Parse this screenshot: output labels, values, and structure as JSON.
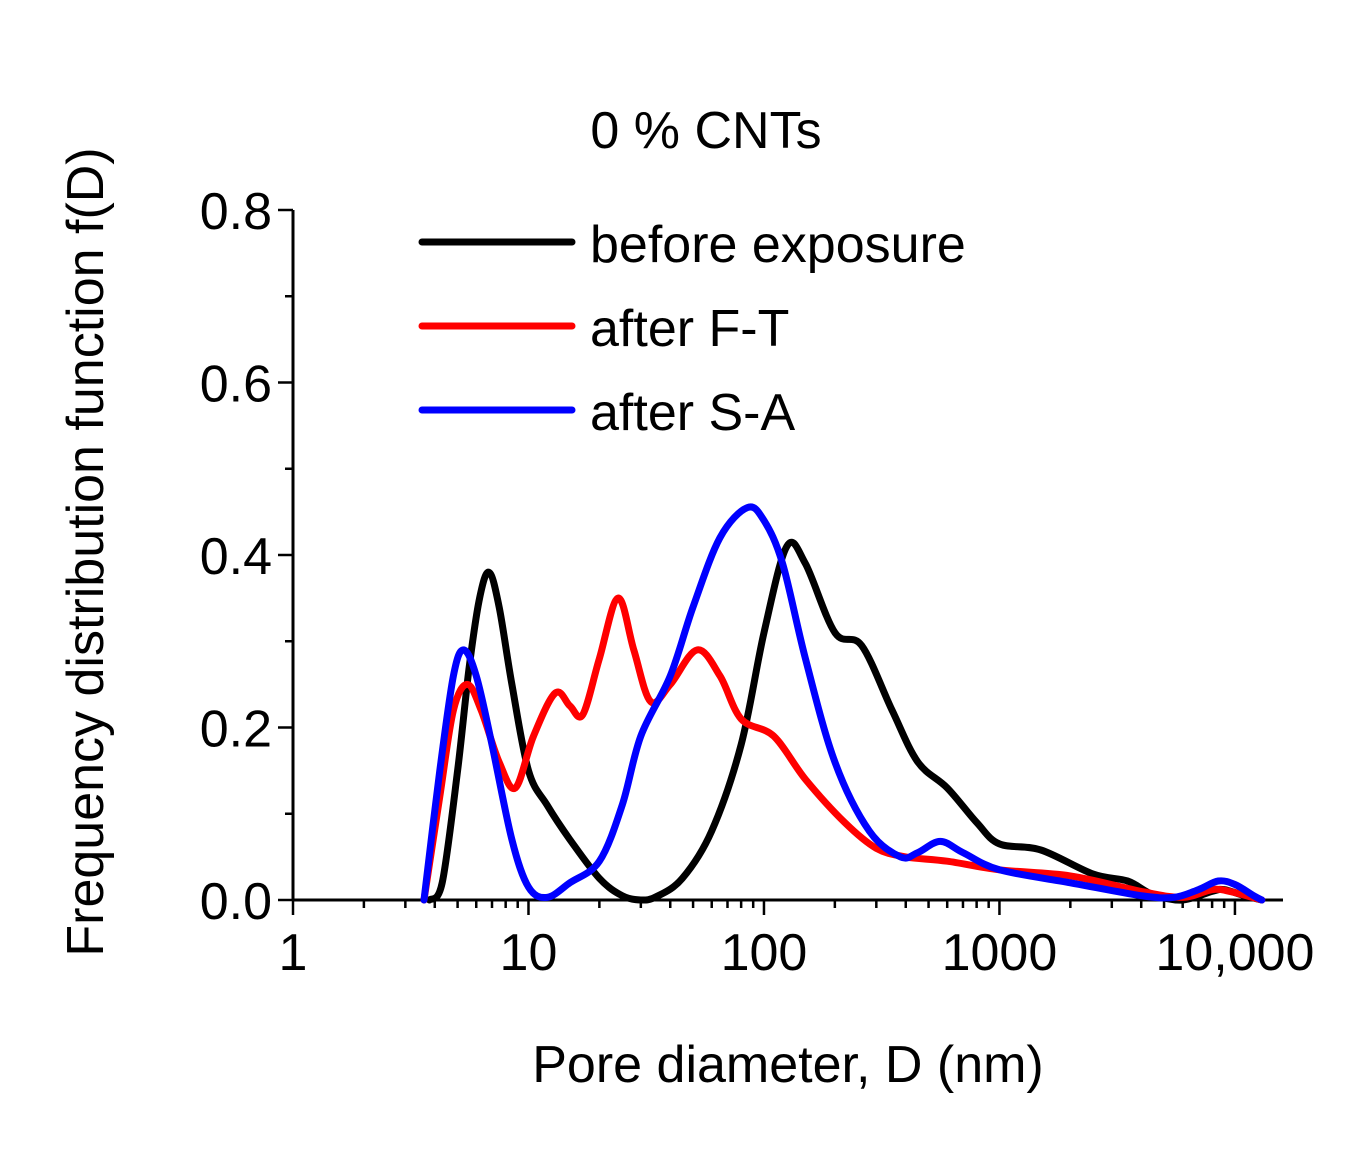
{
  "chart_data": {
    "type": "line",
    "title": "0 % CNTs",
    "xlabel": "Pore diameter, D (nm)",
    "ylabel": "Frequency distribution function f(D)",
    "x_scale": "log",
    "xlim": [
      1,
      16000
    ],
    "ylim": [
      0,
      0.8
    ],
    "x_ticks": [
      {
        "value": 1,
        "label": "1"
      },
      {
        "value": 10,
        "label": "10"
      },
      {
        "value": 100,
        "label": "100"
      },
      {
        "value": 1000,
        "label": "1000"
      },
      {
        "value": 10000,
        "label": "10,000"
      }
    ],
    "y_ticks": [
      {
        "value": 0.0,
        "label": "0.0"
      },
      {
        "value": 0.2,
        "label": "0.2"
      },
      {
        "value": 0.4,
        "label": "0.4"
      },
      {
        "value": 0.6,
        "label": "0.6"
      },
      {
        "value": 0.8,
        "label": "0.8"
      }
    ],
    "grid": false,
    "legend_position": "top-center",
    "series": [
      {
        "name": "before exposure",
        "color": "#000000",
        "points": [
          [
            3.8,
            0.0
          ],
          [
            4.3,
            0.02
          ],
          [
            5.0,
            0.15
          ],
          [
            5.6,
            0.27
          ],
          [
            6.2,
            0.35
          ],
          [
            6.8,
            0.38
          ],
          [
            7.5,
            0.34
          ],
          [
            8.5,
            0.25
          ],
          [
            10.0,
            0.15
          ],
          [
            12.0,
            0.11
          ],
          [
            15.0,
            0.07
          ],
          [
            20.0,
            0.025
          ],
          [
            25.0,
            0.005
          ],
          [
            30.0,
            0.0
          ],
          [
            35.0,
            0.004
          ],
          [
            45.0,
            0.025
          ],
          [
            60.0,
            0.08
          ],
          [
            80.0,
            0.18
          ],
          [
            100.0,
            0.31
          ],
          [
            125.0,
            0.41
          ],
          [
            150.0,
            0.39
          ],
          [
            200.0,
            0.31
          ],
          [
            260.0,
            0.295
          ],
          [
            350.0,
            0.22
          ],
          [
            450.0,
            0.16
          ],
          [
            600.0,
            0.13
          ],
          [
            800.0,
            0.09
          ],
          [
            1000.0,
            0.065
          ],
          [
            1500.0,
            0.058
          ],
          [
            2500.0,
            0.03
          ],
          [
            3500.0,
            0.022
          ],
          [
            4500.0,
            0.006
          ],
          [
            6000.0,
            0.0
          ],
          [
            8000.0,
            0.01
          ],
          [
            9000.0,
            0.012
          ],
          [
            11000.0,
            0.005
          ],
          [
            13000.0,
            0.0
          ]
        ]
      },
      {
        "name": "after F-T",
        "color": "#ff0000",
        "points": [
          [
            3.6,
            0.0
          ],
          [
            4.2,
            0.12
          ],
          [
            4.8,
            0.22
          ],
          [
            5.5,
            0.25
          ],
          [
            6.3,
            0.22
          ],
          [
            7.5,
            0.16
          ],
          [
            8.8,
            0.13
          ],
          [
            10.5,
            0.19
          ],
          [
            13.0,
            0.24
          ],
          [
            15.0,
            0.225
          ],
          [
            17.0,
            0.215
          ],
          [
            20.0,
            0.28
          ],
          [
            24.0,
            0.35
          ],
          [
            28.0,
            0.29
          ],
          [
            33.0,
            0.23
          ],
          [
            40.0,
            0.25
          ],
          [
            52.0,
            0.29
          ],
          [
            65.0,
            0.26
          ],
          [
            80.0,
            0.21
          ],
          [
            110.0,
            0.19
          ],
          [
            150.0,
            0.14
          ],
          [
            220.0,
            0.09
          ],
          [
            300.0,
            0.06
          ],
          [
            400.0,
            0.05
          ],
          [
            600.0,
            0.045
          ],
          [
            1000.0,
            0.035
          ],
          [
            2000.0,
            0.028
          ],
          [
            4000.0,
            0.01
          ],
          [
            6000.0,
            0.003
          ],
          [
            8000.0,
            0.012
          ],
          [
            9500.0,
            0.01
          ],
          [
            11500.0,
            0.004
          ],
          [
            13000.0,
            0.0
          ]
        ]
      },
      {
        "name": "after S-A",
        "color": "#0000ff",
        "points": [
          [
            3.6,
            0.0
          ],
          [
            4.2,
            0.15
          ],
          [
            4.8,
            0.26
          ],
          [
            5.3,
            0.29
          ],
          [
            6.0,
            0.26
          ],
          [
            7.0,
            0.18
          ],
          [
            8.5,
            0.07
          ],
          [
            10.0,
            0.015
          ],
          [
            12.0,
            0.003
          ],
          [
            15.0,
            0.02
          ],
          [
            20.0,
            0.045
          ],
          [
            25.0,
            0.11
          ],
          [
            30.0,
            0.19
          ],
          [
            40.0,
            0.26
          ],
          [
            50.0,
            0.34
          ],
          [
            65.0,
            0.42
          ],
          [
            85.0,
            0.455
          ],
          [
            100.0,
            0.44
          ],
          [
            120.0,
            0.39
          ],
          [
            150.0,
            0.28
          ],
          [
            200.0,
            0.16
          ],
          [
            280.0,
            0.08
          ],
          [
            380.0,
            0.05
          ],
          [
            450.0,
            0.055
          ],
          [
            560.0,
            0.068
          ],
          [
            700.0,
            0.055
          ],
          [
            1000.0,
            0.035
          ],
          [
            2000.0,
            0.02
          ],
          [
            4000.0,
            0.005
          ],
          [
            5500.0,
            0.003
          ],
          [
            7000.0,
            0.012
          ],
          [
            8500.0,
            0.022
          ],
          [
            10000.0,
            0.018
          ],
          [
            12000.0,
            0.005
          ],
          [
            13000.0,
            0.0
          ]
        ]
      }
    ]
  }
}
